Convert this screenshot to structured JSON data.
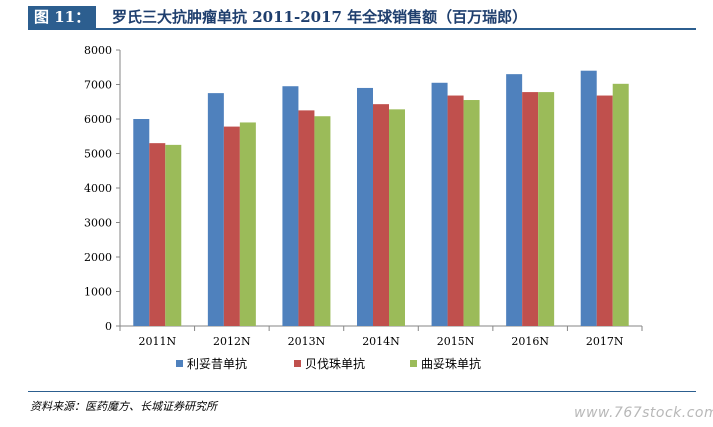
{
  "figure": {
    "label": "图 11：",
    "title": "罗氏三大抗肿瘤单抗 2011-2017 年全球销售额（百万瑞郎）"
  },
  "chart_data": {
    "type": "bar",
    "title": "罗氏三大抗肿瘤单抗 2011-2017 年全球销售额（百万瑞郎）",
    "categories": [
      "2011N",
      "2012N",
      "2013N",
      "2014N",
      "2015N",
      "2016N",
      "2017N"
    ],
    "series": [
      {
        "name": "利妥昔单抗",
        "color": "#4f81bd",
        "values": [
          6000,
          6750,
          6950,
          6900,
          7050,
          7300,
          7400
        ]
      },
      {
        "name": "贝伐珠单抗",
        "color": "#c0504d",
        "values": [
          5300,
          5780,
          6250,
          6430,
          6680,
          6780,
          6680
        ]
      },
      {
        "name": "曲妥珠单抗",
        "color": "#9bbb59",
        "values": [
          5250,
          5900,
          6080,
          6280,
          6550,
          6780,
          7020
        ]
      }
    ],
    "yticks": [
      "0",
      "1000",
      "2000",
      "3000",
      "4000",
      "5000",
      "6000",
      "7000",
      "8000"
    ],
    "ylim": [
      0,
      8000
    ],
    "xlabel": "",
    "ylabel": "",
    "grid": false,
    "legend_position": "bottom"
  },
  "footer": {
    "source": "资料来源：医药魔方、长城证券研究所",
    "watermark": "www.767stock.com"
  }
}
